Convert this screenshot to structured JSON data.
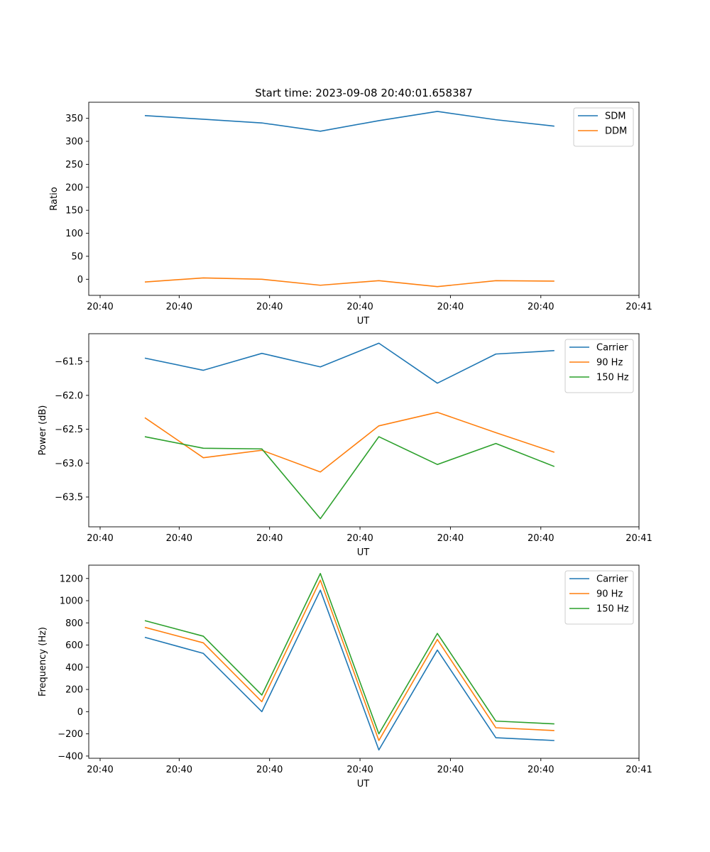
{
  "chart_data": [
    {
      "type": "line",
      "title": "Start time: 2023-09-08 20:40:01.658387",
      "xlabel": "UT",
      "ylabel": "Ratio",
      "x_tick_labels": [
        "20:40",
        "20:40",
        "20:40",
        "20:40",
        "20:40",
        "20:40",
        "20:41"
      ],
      "x": [
        1,
        2,
        3,
        4,
        5,
        6,
        7,
        8
      ],
      "xlim": [
        0,
        9.25
      ],
      "x_ticks": [
        0,
        1.52,
        3.04,
        4.56,
        6.08,
        7.6,
        9.25
      ],
      "ylim": [
        -35,
        385
      ],
      "y_ticks": [
        0,
        50,
        100,
        150,
        200,
        250,
        300,
        350
      ],
      "y_tick_labels": [
        "0",
        "50",
        "100",
        "150",
        "200",
        "250",
        "300",
        "350"
      ],
      "legend_loc": "top-right",
      "series": [
        {
          "name": "SDM",
          "color": "#1f77b4",
          "values": [
            356,
            348,
            340,
            322,
            345,
            365,
            347,
            333
          ]
        },
        {
          "name": "DDM",
          "color": "#ff7f0e",
          "values": [
            -6,
            3,
            0,
            -13,
            -3,
            -16,
            -3,
            -4
          ]
        }
      ]
    },
    {
      "type": "line",
      "title": "",
      "xlabel": "UT",
      "ylabel": "Power (dB)",
      "x_tick_labels": [
        "20:40",
        "20:40",
        "20:40",
        "20:40",
        "20:40",
        "20:40",
        "20:41"
      ],
      "x": [
        1,
        2,
        3,
        4,
        5,
        6,
        7,
        8
      ],
      "xlim": [
        0,
        9.25
      ],
      "x_ticks": [
        0,
        1.52,
        3.04,
        4.56,
        6.08,
        7.6,
        9.25
      ],
      "ylim": [
        -63.94,
        -61.09
      ],
      "y_ticks": [
        -63.5,
        -63.0,
        -62.5,
        -62.0,
        -61.5
      ],
      "y_tick_labels": [
        "−63.5",
        "−63.0",
        "−62.5",
        "−62.0",
        "−61.5"
      ],
      "legend_loc": "top-right",
      "series": [
        {
          "name": "Carrier",
          "color": "#1f77b4",
          "values": [
            -61.45,
            -61.63,
            -61.38,
            -61.58,
            -61.23,
            -61.82,
            -61.39,
            -61.34
          ]
        },
        {
          "name": "90 Hz",
          "color": "#ff7f0e",
          "values": [
            -62.33,
            -62.92,
            -62.81,
            -63.13,
            -62.45,
            -62.25,
            -62.55,
            -62.84
          ]
        },
        {
          "name": "150 Hz",
          "color": "#2ca02c",
          "values": [
            -62.61,
            -62.78,
            -62.79,
            -63.82,
            -62.61,
            -63.02,
            -62.71,
            -63.05
          ]
        }
      ]
    },
    {
      "type": "line",
      "title": "",
      "xlabel": "UT",
      "ylabel": "Frequency (Hz)",
      "x_tick_labels": [
        "20:40",
        "20:40",
        "20:40",
        "20:40",
        "20:40",
        "20:40",
        "20:41"
      ],
      "x": [
        1,
        2,
        3,
        4,
        5,
        6,
        7,
        8
      ],
      "xlim": [
        0,
        9.25
      ],
      "x_ticks": [
        0,
        1.52,
        3.04,
        4.56,
        6.08,
        7.6,
        9.25
      ],
      "ylim": [
        -420,
        1320
      ],
      "y_ticks": [
        -400,
        -200,
        0,
        200,
        400,
        600,
        800,
        1000,
        1200
      ],
      "y_tick_labels": [
        "−400",
        "−200",
        "0",
        "200",
        "400",
        "600",
        "800",
        "1000",
        "1200"
      ],
      "legend_loc": "top-right",
      "series": [
        {
          "name": "Carrier",
          "color": "#1f77b4",
          "values": [
            670,
            525,
            0,
            1095,
            -345,
            555,
            -235,
            -260
          ]
        },
        {
          "name": "90 Hz",
          "color": "#ff7f0e",
          "values": [
            760,
            620,
            90,
            1185,
            -260,
            650,
            -145,
            -170
          ]
        },
        {
          "name": "150 Hz",
          "color": "#2ca02c",
          "values": [
            820,
            680,
            150,
            1245,
            -200,
            705,
            -85,
            -110
          ]
        }
      ]
    }
  ]
}
